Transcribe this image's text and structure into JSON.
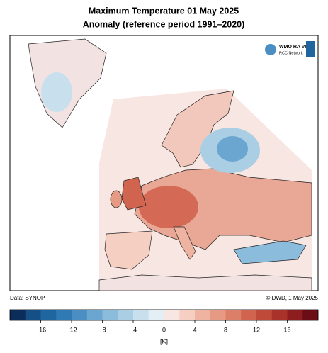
{
  "title": [
    "Maximum Temperature 01 May 2025",
    "Anomaly (reference period 1991–2020)"
  ],
  "logo": [
    "WMO RA VI",
    "RCC Network"
  ],
  "footer": {
    "source": "Data: SYNOP",
    "credit": "© DWD, 1 May 2025"
  },
  "colorbar": {
    "unit": "[K]",
    "bounds": [
      -20,
      -18,
      -16,
      -14,
      -12,
      -10,
      -8,
      -6,
      -4,
      -2,
      0,
      2,
      4,
      6,
      8,
      10,
      12,
      14,
      16,
      18,
      20
    ],
    "colors": [
      "#0c2c5a",
      "#154f86",
      "#1f65a0",
      "#2f79b5",
      "#4a8ec3",
      "#6aa6d0",
      "#8cbcdc",
      "#aacfe5",
      "#c8e0ee",
      "#e3eef5",
      "#f7e6e1",
      "#f5cfc2",
      "#eeb4a1",
      "#e69a84",
      "#dc7f68",
      "#d0644f",
      "#c04a3a",
      "#a9322b",
      "#8e1d20",
      "#6b0d17"
    ],
    "ticks": [
      {
        "value": -16,
        "label": "−16"
      },
      {
        "value": -12,
        "label": "−12"
      },
      {
        "value": -8,
        "label": "−8"
      },
      {
        "value": -4,
        "label": "−4"
      },
      0,
      4,
      8,
      12,
      16
    ]
  }
}
